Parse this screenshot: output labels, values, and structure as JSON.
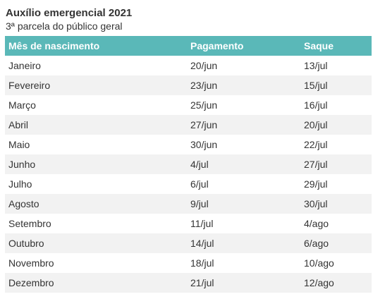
{
  "title": "Auxílio emergencial 2021",
  "subtitle": "3ª parcela do público geral",
  "colors": {
    "header_bg": "#5ab8b8",
    "header_text": "#ffffff",
    "row_alt_bg": "#f2f2f2"
  },
  "table": {
    "headers": [
      "Mês de nascimento",
      "Pagamento",
      "Saque"
    ],
    "rows": [
      [
        "Janeiro",
        "20/jun",
        "13/jul"
      ],
      [
        "Fevereiro",
        "23/jun",
        "15/jul"
      ],
      [
        "Março",
        "25/jun",
        "16/jul"
      ],
      [
        "Abril",
        "27/jun",
        "20/jul"
      ],
      [
        "Maio",
        "30/jun",
        "22/jul"
      ],
      [
        "Junho",
        "4/jul",
        "27/jul"
      ],
      [
        "Julho",
        "6/jul",
        "29/jul"
      ],
      [
        "Agosto",
        "9/jul",
        "30/jul"
      ],
      [
        "Setembro",
        "11/jul",
        "4/ago"
      ],
      [
        "Outubro",
        "14/jul",
        "6/ago"
      ],
      [
        "Novembro",
        "18/jul",
        "10/ago"
      ],
      [
        "Dezembro",
        "21/jul",
        "12/ago"
      ]
    ]
  }
}
